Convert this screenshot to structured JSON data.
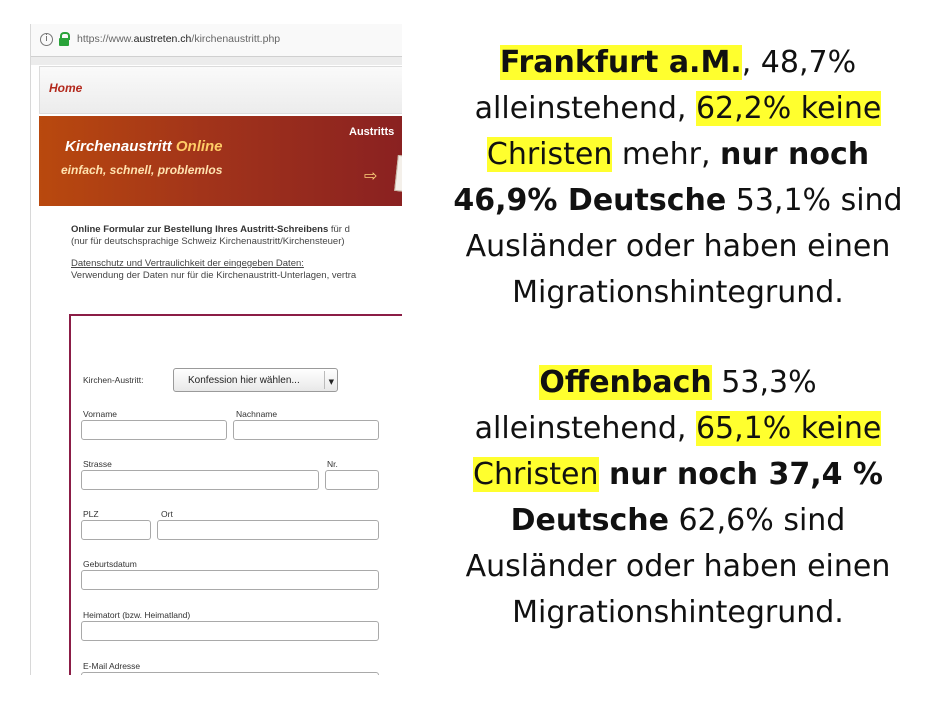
{
  "browser": {
    "url_prefix": "https://www.",
    "url_domain": "austreten.ch",
    "url_path": "/kirchenaustritt.php"
  },
  "site": {
    "nav_home": "Home",
    "banner_title_a": "Kirchenaustritt",
    "banner_title_b": "Online",
    "banner_subtitle": "einfach, schnell, problemlos",
    "banner_right": "Austritts",
    "intro_bold": "Online Formular zur Bestellung Ihres Austritt-Schreibens",
    "intro_bold_tail": " für d",
    "intro_line2": "(nur für deutschsprachige Schweiz Kirchenaustritt/Kirchensteuer)",
    "privacy_link": "Datenschutz und Vertraulichkeit der eingegeben Daten:",
    "privacy_text": "Verwendung der Daten nur für die Kirchenaustritt-Unterlagen, vertra"
  },
  "form": {
    "kirchen_label": "Kirchen-Austritt:",
    "kirchen_select": "Konfession hier wählen...",
    "vorname": "Vorname",
    "nachname": "Nachname",
    "strasse": "Strasse",
    "nr": "Nr.",
    "plz": "PLZ",
    "ort": "Ort",
    "geburtsdatum": "Geburtsdatum",
    "heimatort": "Heimatort (bzw. Heimatland)",
    "email": "E-Mail Adresse"
  },
  "slide": {
    "frankfurt": {
      "city": "Frankfurt a.M.",
      "l1_rest": ", 48,7%",
      "l2_a": "alleinstehend, ",
      "l2_hl": "62,2% keine",
      "l3_hl": "Christen",
      "l3_a": " mehr, ",
      "l3_b": "nur noch",
      "l4_b": "46,9% Deutsche",
      "l4_a": " 53,1% sind",
      "l5": "Ausländer oder haben einen",
      "l6": "Migrationshintegrund."
    },
    "offenbach": {
      "city": "Offenbach",
      "l1_rest": " 53,3%",
      "l2_a": "alleinstehend, ",
      "l2_hl": "65,1% keine",
      "l3_hl": "Christen",
      "l3_b": " nur noch 37,4 %",
      "l4_b": "Deutsche",
      "l4_a": "  62,6% sind",
      "l5": "Ausländer oder haben einen",
      "l6": "Migrationshintegrund."
    },
    "highlight_color": "#ffff2e"
  }
}
